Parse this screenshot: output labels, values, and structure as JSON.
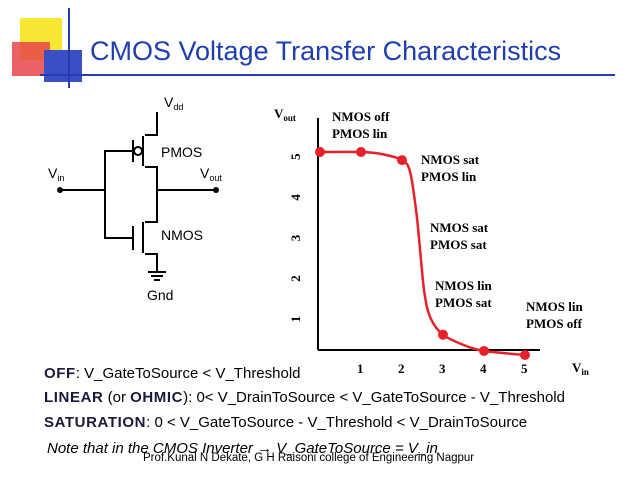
{
  "title": "CMOS Voltage Transfer Characteristics",
  "colors": {
    "title": "#1f3fb0",
    "curve": "#e8202a",
    "deco_yellow": "#f7e733",
    "deco_red": "#e8454a",
    "deco_blue": "#3b4fc4"
  },
  "circuit": {
    "vdd_main": "V",
    "vdd_sub": "dd",
    "vin_main": "V",
    "vin_sub": "in",
    "vout_main": "V",
    "vout_sub": "out",
    "pmos": "PMOS",
    "nmos": "NMOS",
    "gnd": "Gnd"
  },
  "chart_data": {
    "type": "line",
    "xlabel_main": "V",
    "xlabel_sub": "in",
    "ylabel_main": "V",
    "ylabel_sub": "out",
    "x_ticks": [
      "1",
      "2",
      "3",
      "4",
      "5"
    ],
    "y_ticks": [
      "1",
      "2",
      "3",
      "4",
      "5"
    ],
    "xlim": [
      0,
      5.3
    ],
    "ylim": [
      0,
      5.4
    ],
    "curve": [
      [
        0,
        5.0
      ],
      [
        1.0,
        5.0
      ],
      [
        1.5,
        4.95
      ],
      [
        2.0,
        4.8
      ],
      [
        2.2,
        4.5
      ],
      [
        2.35,
        3.5
      ],
      [
        2.45,
        2.5
      ],
      [
        2.55,
        1.5
      ],
      [
        2.7,
        0.9
      ],
      [
        3.0,
        0.5
      ],
      [
        3.5,
        0.25
      ],
      [
        4.0,
        0.1
      ],
      [
        5.0,
        0.0
      ]
    ],
    "markers": [
      [
        0,
        5.0
      ],
      [
        1.0,
        5.0
      ],
      [
        2.0,
        4.8
      ],
      [
        3.0,
        0.5
      ],
      [
        4.0,
        0.1
      ],
      [
        5.0,
        0.0
      ]
    ],
    "regions": [
      {
        "line1": "NMOS off",
        "line2": "PMOS lin"
      },
      {
        "line1": "NMOS sat",
        "line2": "PMOS lin"
      },
      {
        "line1": "NMOS sat",
        "line2": "PMOS sat"
      },
      {
        "line1": "NMOS lin",
        "line2": "PMOS sat"
      },
      {
        "line1": "NMOS lin",
        "line2": "PMOS off"
      }
    ]
  },
  "definitions": {
    "off_kw": "OFF",
    "off_text": ":  V_GateToSource < V_Threshold",
    "linear_kw": "LINEAR",
    "linear_open": " (or ",
    "ohmic_kw": "OHMIC",
    "linear_text": "): 0< V_DrainToSource < V_GateToSource - V_Threshold",
    "sat_kw": "SATURATION",
    "sat_text": ":  0 < V_GateToSource - V_Threshold < V_DrainToSource"
  },
  "note": "Note that in the CMOS Inverter  →  V_GateToSource = V_in",
  "credit": "Prof.Kunal N Dekate, G H Raisoni college of Engineering Nagpur"
}
